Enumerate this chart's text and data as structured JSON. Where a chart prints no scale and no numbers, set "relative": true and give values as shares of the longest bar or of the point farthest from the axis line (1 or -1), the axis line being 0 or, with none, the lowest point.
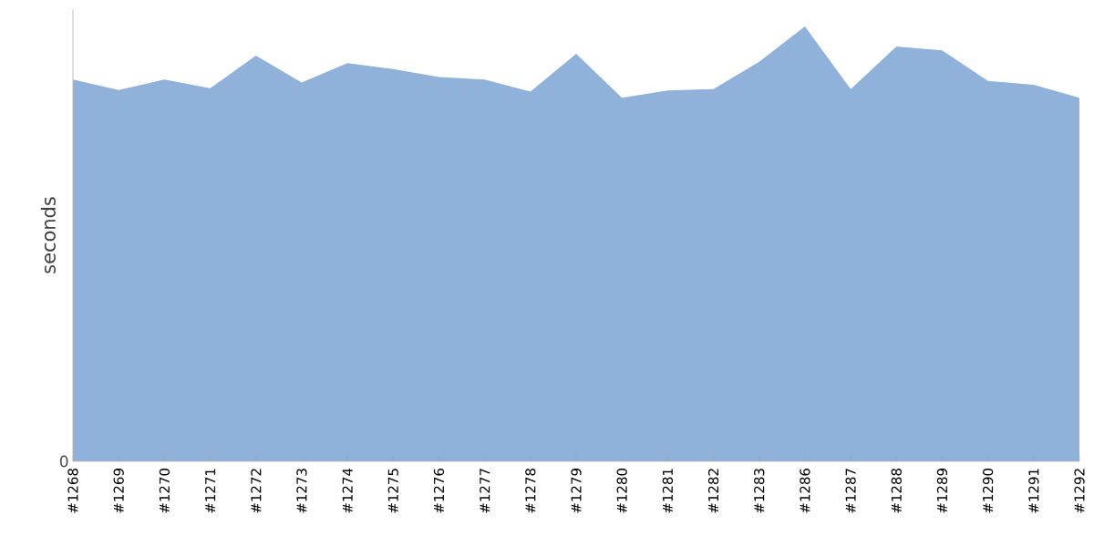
{
  "chart_data": {
    "type": "area",
    "ylabel": "seconds",
    "relative": true,
    "color": "#8fb1da",
    "categories": [
      "#1268",
      "#1269",
      "#1270",
      "#1271",
      "#1272",
      "#1273",
      "#1274",
      "#1275",
      "#1276",
      "#1277",
      "#1278",
      "#1279",
      "#1280",
      "#1281",
      "#1282",
      "#1283",
      "#1286",
      "#1287",
      "#1288",
      "#1289",
      "#1290",
      "#1291",
      "#1292"
    ],
    "values": [
      0.878,
      0.854,
      0.878,
      0.858,
      0.933,
      0.871,
      0.916,
      0.902,
      0.884,
      0.878,
      0.85,
      0.937,
      0.836,
      0.853,
      0.856,
      0.919,
      1,
      0.856,
      0.954,
      0.945,
      0.875,
      0.866,
      0.836
    ],
    "annotations": [
      "0"
    ]
  }
}
